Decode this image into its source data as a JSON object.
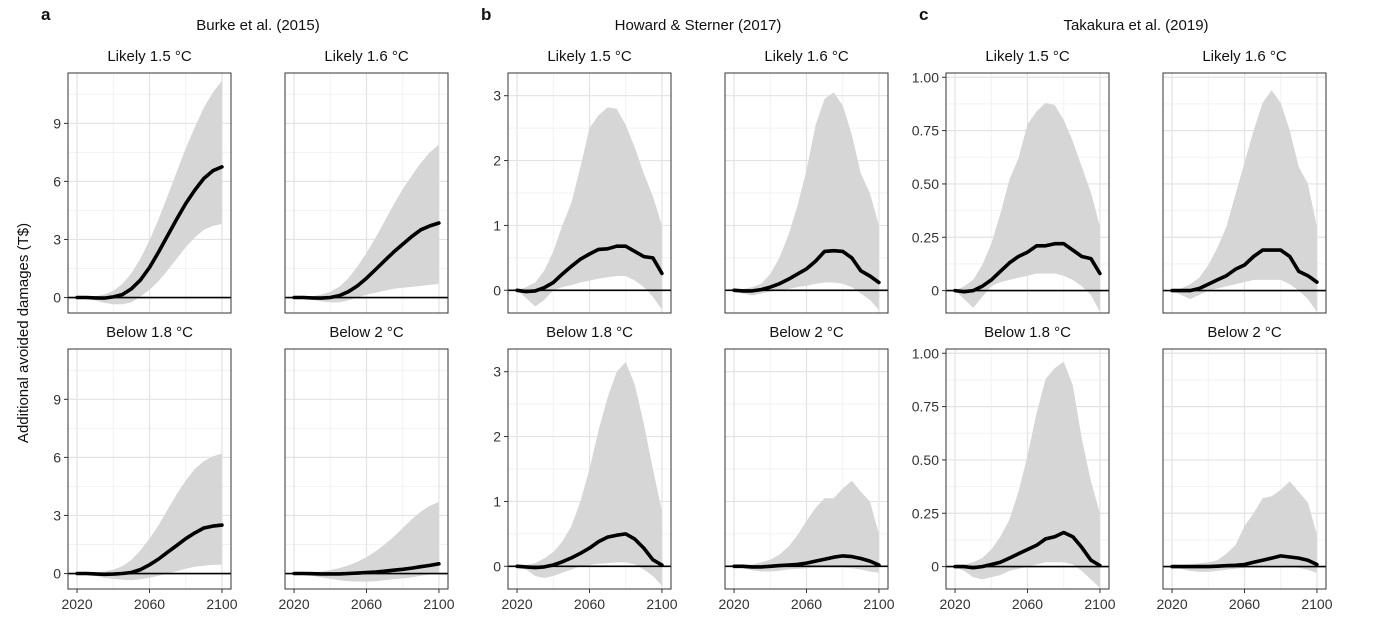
{
  "figure": {
    "ylabel": "Additional avoided damages (T$)"
  },
  "chart_data": [
    {
      "letter": "a",
      "title": "Burke et al. (2015)",
      "ylim": [
        -0.8,
        11.6
      ],
      "yticks": [
        0,
        3,
        6,
        9
      ],
      "ytick_labels": [
        "0",
        "3",
        "6",
        "9"
      ],
      "xlim": [
        2015,
        2105
      ],
      "xticks": [
        2020,
        2060,
        2100
      ],
      "xtick_labels": [
        "2020",
        "2060",
        "2100"
      ],
      "facets": [
        {
          "title": "Likely 1.5 °C",
          "type": "line",
          "x": [
            2020,
            2025,
            2030,
            2035,
            2040,
            2045,
            2050,
            2055,
            2060,
            2065,
            2070,
            2075,
            2080,
            2085,
            2090,
            2095,
            2100
          ],
          "median": [
            0,
            0,
            -0.02,
            -0.03,
            0.03,
            0.15,
            0.45,
            0.9,
            1.55,
            2.35,
            3.2,
            4.05,
            4.85,
            5.55,
            6.15,
            6.55,
            6.75
          ],
          "lower": [
            0,
            -0.05,
            -0.15,
            -0.28,
            -0.35,
            -0.35,
            -0.25,
            0.05,
            0.4,
            0.85,
            1.4,
            2.0,
            2.6,
            3.1,
            3.5,
            3.7,
            3.8
          ],
          "upper": [
            0,
            0.03,
            0.07,
            0.15,
            0.35,
            0.7,
            1.25,
            2.0,
            2.95,
            4.05,
            5.25,
            6.5,
            7.7,
            8.8,
            9.8,
            10.6,
            11.2
          ]
        },
        {
          "title": "Likely 1.6 °C",
          "type": "line",
          "x": [
            2020,
            2025,
            2030,
            2035,
            2040,
            2045,
            2050,
            2055,
            2060,
            2065,
            2070,
            2075,
            2080,
            2085,
            2090,
            2095,
            2100
          ],
          "median": [
            0,
            0,
            -0.02,
            -0.03,
            0,
            0.1,
            0.3,
            0.6,
            1.0,
            1.45,
            1.9,
            2.35,
            2.75,
            3.15,
            3.5,
            3.7,
            3.85
          ],
          "lower": [
            0,
            -0.05,
            -0.12,
            -0.2,
            -0.25,
            -0.25,
            -0.15,
            0,
            0.15,
            0.25,
            0.35,
            0.45,
            0.5,
            0.55,
            0.6,
            0.65,
            0.7
          ],
          "upper": [
            0,
            0.03,
            0.07,
            0.15,
            0.3,
            0.55,
            1.0,
            1.6,
            2.3,
            3.1,
            3.95,
            4.8,
            5.6,
            6.3,
            6.95,
            7.5,
            7.9
          ]
        },
        {
          "title": "Below 1.8 °C",
          "type": "line",
          "x": [
            2020,
            2025,
            2030,
            2035,
            2040,
            2045,
            2050,
            2055,
            2060,
            2065,
            2070,
            2075,
            2080,
            2085,
            2090,
            2095,
            2100
          ],
          "median": [
            0,
            0,
            -0.02,
            -0.04,
            -0.03,
            0,
            0.05,
            0.2,
            0.45,
            0.75,
            1.1,
            1.45,
            1.8,
            2.1,
            2.35,
            2.45,
            2.5
          ],
          "lower": [
            0,
            -0.05,
            -0.12,
            -0.22,
            -0.28,
            -0.32,
            -0.35,
            -0.3,
            -0.22,
            -0.12,
            0,
            0.12,
            0.25,
            0.35,
            0.4,
            0.45,
            0.45
          ],
          "upper": [
            0,
            0.02,
            0.05,
            0.1,
            0.2,
            0.38,
            0.7,
            1.2,
            1.8,
            2.5,
            3.3,
            4.1,
            4.8,
            5.4,
            5.8,
            6.05,
            6.2
          ]
        },
        {
          "title": "Below 2 °C",
          "type": "line",
          "x": [
            2020,
            2025,
            2030,
            2035,
            2040,
            2045,
            2050,
            2055,
            2060,
            2065,
            2070,
            2075,
            2080,
            2085,
            2090,
            2095,
            2100
          ],
          "median": [
            0,
            0,
            -0.01,
            -0.02,
            -0.02,
            -0.02,
            0,
            0.02,
            0.05,
            0.08,
            0.12,
            0.17,
            0.22,
            0.28,
            0.35,
            0.42,
            0.5
          ],
          "lower": [
            0,
            -0.05,
            -0.12,
            -0.2,
            -0.28,
            -0.35,
            -0.4,
            -0.42,
            -0.42,
            -0.4,
            -0.35,
            -0.3,
            -0.25,
            -0.2,
            -0.12,
            -0.05,
            0
          ],
          "upper": [
            0,
            0.02,
            0.05,
            0.1,
            0.18,
            0.28,
            0.42,
            0.6,
            0.85,
            1.15,
            1.5,
            1.9,
            2.35,
            2.8,
            3.2,
            3.5,
            3.7
          ]
        }
      ]
    },
    {
      "letter": "b",
      "title": "Howard & Sterner (2017)",
      "ylim": [
        -0.35,
        3.35
      ],
      "yticks": [
        0,
        1,
        2,
        3
      ],
      "ytick_labels": [
        "0",
        "1",
        "2",
        "3"
      ],
      "xlim": [
        2015,
        2105
      ],
      "xticks": [
        2020,
        2060,
        2100
      ],
      "xtick_labels": [
        "2020",
        "2060",
        "2100"
      ],
      "facets": [
        {
          "title": "Likely 1.5 °C",
          "type": "line",
          "x": [
            2020,
            2025,
            2030,
            2035,
            2040,
            2045,
            2050,
            2055,
            2060,
            2065,
            2070,
            2075,
            2080,
            2085,
            2090,
            2095,
            2100
          ],
          "median": [
            0,
            -0.02,
            -0.01,
            0.04,
            0.12,
            0.25,
            0.37,
            0.48,
            0.56,
            0.63,
            0.64,
            0.68,
            0.68,
            0.6,
            0.52,
            0.5,
            0.26
          ],
          "lower": [
            0,
            -0.12,
            -0.25,
            -0.15,
            0,
            0.05,
            0.08,
            0.12,
            0.15,
            0.18,
            0.2,
            0.22,
            0.22,
            0.15,
            0.05,
            -0.1,
            -0.3
          ],
          "upper": [
            0,
            0.05,
            0.12,
            0.3,
            0.6,
            1.0,
            1.35,
            1.9,
            2.5,
            2.7,
            2.82,
            2.8,
            2.55,
            2.2,
            1.8,
            1.45,
            1.0
          ]
        },
        {
          "title": "Likely 1.6 °C",
          "type": "line",
          "x": [
            2020,
            2025,
            2030,
            2035,
            2040,
            2045,
            2050,
            2055,
            2060,
            2065,
            2070,
            2075,
            2080,
            2085,
            2090,
            2095,
            2100
          ],
          "median": [
            0,
            -0.01,
            -0.01,
            0.01,
            0.05,
            0.1,
            0.17,
            0.25,
            0.33,
            0.45,
            0.6,
            0.61,
            0.6,
            0.5,
            0.3,
            0.22,
            0.12
          ],
          "lower": [
            0,
            -0.05,
            -0.08,
            -0.05,
            -0.02,
            0,
            0.02,
            0.05,
            0.07,
            0.1,
            0.12,
            0.12,
            0.1,
            0.05,
            -0.05,
            -0.15,
            -0.3
          ],
          "upper": [
            0,
            0.02,
            0.05,
            0.1,
            0.25,
            0.5,
            0.85,
            1.3,
            1.85,
            2.55,
            2.95,
            3.05,
            2.85,
            2.4,
            1.8,
            1.5,
            1.0
          ]
        },
        {
          "title": "Below 1.8 °C",
          "type": "line",
          "x": [
            2020,
            2025,
            2030,
            2035,
            2040,
            2045,
            2050,
            2055,
            2060,
            2065,
            2070,
            2075,
            2080,
            2085,
            2090,
            2095,
            2100
          ],
          "median": [
            0,
            -0.01,
            -0.02,
            -0.01,
            0.02,
            0.07,
            0.13,
            0.2,
            0.28,
            0.38,
            0.45,
            0.48,
            0.5,
            0.42,
            0.28,
            0.1,
            0.02
          ],
          "lower": [
            0,
            -0.05,
            -0.15,
            -0.18,
            -0.15,
            -0.1,
            -0.05,
            0,
            0.02,
            0.04,
            0.05,
            0.06,
            0.06,
            0.03,
            -0.05,
            -0.15,
            -0.3
          ],
          "upper": [
            0,
            0.02,
            0.05,
            0.12,
            0.22,
            0.38,
            0.62,
            1.0,
            1.5,
            2.1,
            2.6,
            3.0,
            3.15,
            2.8,
            2.2,
            1.5,
            0.85
          ]
        },
        {
          "title": "Below 2 °C",
          "type": "line",
          "x": [
            2020,
            2025,
            2030,
            2035,
            2040,
            2045,
            2050,
            2055,
            2060,
            2065,
            2070,
            2075,
            2080,
            2085,
            2090,
            2095,
            2100
          ],
          "median": [
            0,
            0,
            -0.01,
            -0.01,
            0,
            0.01,
            0.02,
            0.03,
            0.05,
            0.08,
            0.11,
            0.14,
            0.16,
            0.15,
            0.12,
            0.08,
            0.02
          ],
          "lower": [
            0,
            -0.03,
            -0.06,
            -0.08,
            -0.08,
            -0.07,
            -0.05,
            -0.04,
            -0.03,
            -0.02,
            -0.02,
            -0.02,
            -0.02,
            -0.03,
            -0.05,
            -0.08,
            -0.1
          ],
          "upper": [
            0,
            0.01,
            0.03,
            0.06,
            0.1,
            0.18,
            0.3,
            0.48,
            0.7,
            0.9,
            1.05,
            1.05,
            1.2,
            1.32,
            1.15,
            1.0,
            0.5
          ]
        }
      ]
    },
    {
      "letter": "c",
      "title": "Takakura et al. (2019)",
      "ylim": [
        -0.105,
        1.02
      ],
      "yticks": [
        0,
        0.25,
        0.5,
        0.75,
        1
      ],
      "ytick_labels": [
        "0",
        "0.25",
        "0.50",
        "0.75",
        "1.00"
      ],
      "xlim": [
        2015,
        2105
      ],
      "xticks": [
        2020,
        2060,
        2100
      ],
      "xtick_labels": [
        "2020",
        "2060",
        "2100"
      ],
      "facets": [
        {
          "title": "Likely 1.5 °C",
          "type": "line",
          "x": [
            2020,
            2025,
            2030,
            2035,
            2040,
            2045,
            2050,
            2055,
            2060,
            2065,
            2070,
            2075,
            2080,
            2085,
            2090,
            2095,
            2100
          ],
          "median": [
            0,
            -0.005,
            0,
            0.02,
            0.05,
            0.09,
            0.13,
            0.16,
            0.18,
            0.21,
            0.21,
            0.22,
            0.22,
            0.19,
            0.16,
            0.15,
            0.08
          ],
          "lower": [
            0,
            -0.04,
            -0.08,
            -0.03,
            0.02,
            0.04,
            0.05,
            0.06,
            0.07,
            0.08,
            0.08,
            0.08,
            0.07,
            0.05,
            0.02,
            -0.02,
            -0.1
          ],
          "upper": [
            0,
            0.02,
            0.05,
            0.12,
            0.22,
            0.36,
            0.52,
            0.62,
            0.78,
            0.84,
            0.88,
            0.87,
            0.8,
            0.7,
            0.58,
            0.46,
            0.3
          ]
        },
        {
          "title": "Likely 1.6 °C",
          "type": "line",
          "x": [
            2020,
            2025,
            2030,
            2035,
            2040,
            2045,
            2050,
            2055,
            2060,
            2065,
            2070,
            2075,
            2080,
            2085,
            2090,
            2095,
            2100
          ],
          "median": [
            0,
            0,
            0,
            0.01,
            0.03,
            0.05,
            0.07,
            0.1,
            0.12,
            0.16,
            0.19,
            0.19,
            0.19,
            0.16,
            0.09,
            0.07,
            0.04
          ],
          "lower": [
            0,
            -0.02,
            -0.04,
            -0.02,
            0,
            0.01,
            0.02,
            0.03,
            0.04,
            0.05,
            0.05,
            0.05,
            0.05,
            0.03,
            0,
            -0.04,
            -0.1
          ],
          "upper": [
            0,
            0.01,
            0.03,
            0.06,
            0.12,
            0.2,
            0.3,
            0.45,
            0.6,
            0.75,
            0.88,
            0.94,
            0.88,
            0.75,
            0.58,
            0.5,
            0.3
          ]
        },
        {
          "title": "Below 1.8 °C",
          "type": "line",
          "x": [
            2020,
            2025,
            2030,
            2035,
            2040,
            2045,
            2050,
            2055,
            2060,
            2065,
            2070,
            2075,
            2080,
            2085,
            2090,
            2095,
            2100
          ],
          "median": [
            0,
            0,
            -0.005,
            0,
            0.01,
            0.02,
            0.04,
            0.06,
            0.08,
            0.1,
            0.13,
            0.14,
            0.16,
            0.14,
            0.09,
            0.03,
            0.005
          ],
          "lower": [
            0,
            -0.02,
            -0.05,
            -0.06,
            -0.05,
            -0.04,
            -0.02,
            -0.01,
            0,
            0.01,
            0.02,
            0.02,
            0.02,
            0.01,
            -0.02,
            -0.06,
            -0.1
          ],
          "upper": [
            0,
            0.01,
            0.02,
            0.04,
            0.08,
            0.14,
            0.22,
            0.35,
            0.52,
            0.72,
            0.88,
            0.93,
            0.96,
            0.85,
            0.6,
            0.4,
            0.25
          ]
        },
        {
          "title": "Below 2 °C",
          "type": "line",
          "x": [
            2020,
            2025,
            2030,
            2035,
            2040,
            2045,
            2050,
            2055,
            2060,
            2065,
            2070,
            2075,
            2080,
            2085,
            2090,
            2095,
            2100
          ],
          "median": [
            0,
            0,
            0,
            0,
            0,
            0.002,
            0.004,
            0.006,
            0.01,
            0.02,
            0.03,
            0.04,
            0.05,
            0.045,
            0.04,
            0.03,
            0.01
          ],
          "lower": [
            0,
            -0.01,
            -0.02,
            -0.025,
            -0.025,
            -0.02,
            -0.015,
            -0.01,
            -0.005,
            0,
            0,
            0.005,
            0.005,
            0,
            -0.005,
            -0.015,
            -0.03
          ],
          "upper": [
            0,
            0.005,
            0.01,
            0.015,
            0.02,
            0.03,
            0.06,
            0.1,
            0.19,
            0.25,
            0.32,
            0.33,
            0.36,
            0.4,
            0.35,
            0.3,
            0.15
          ]
        }
      ]
    }
  ]
}
